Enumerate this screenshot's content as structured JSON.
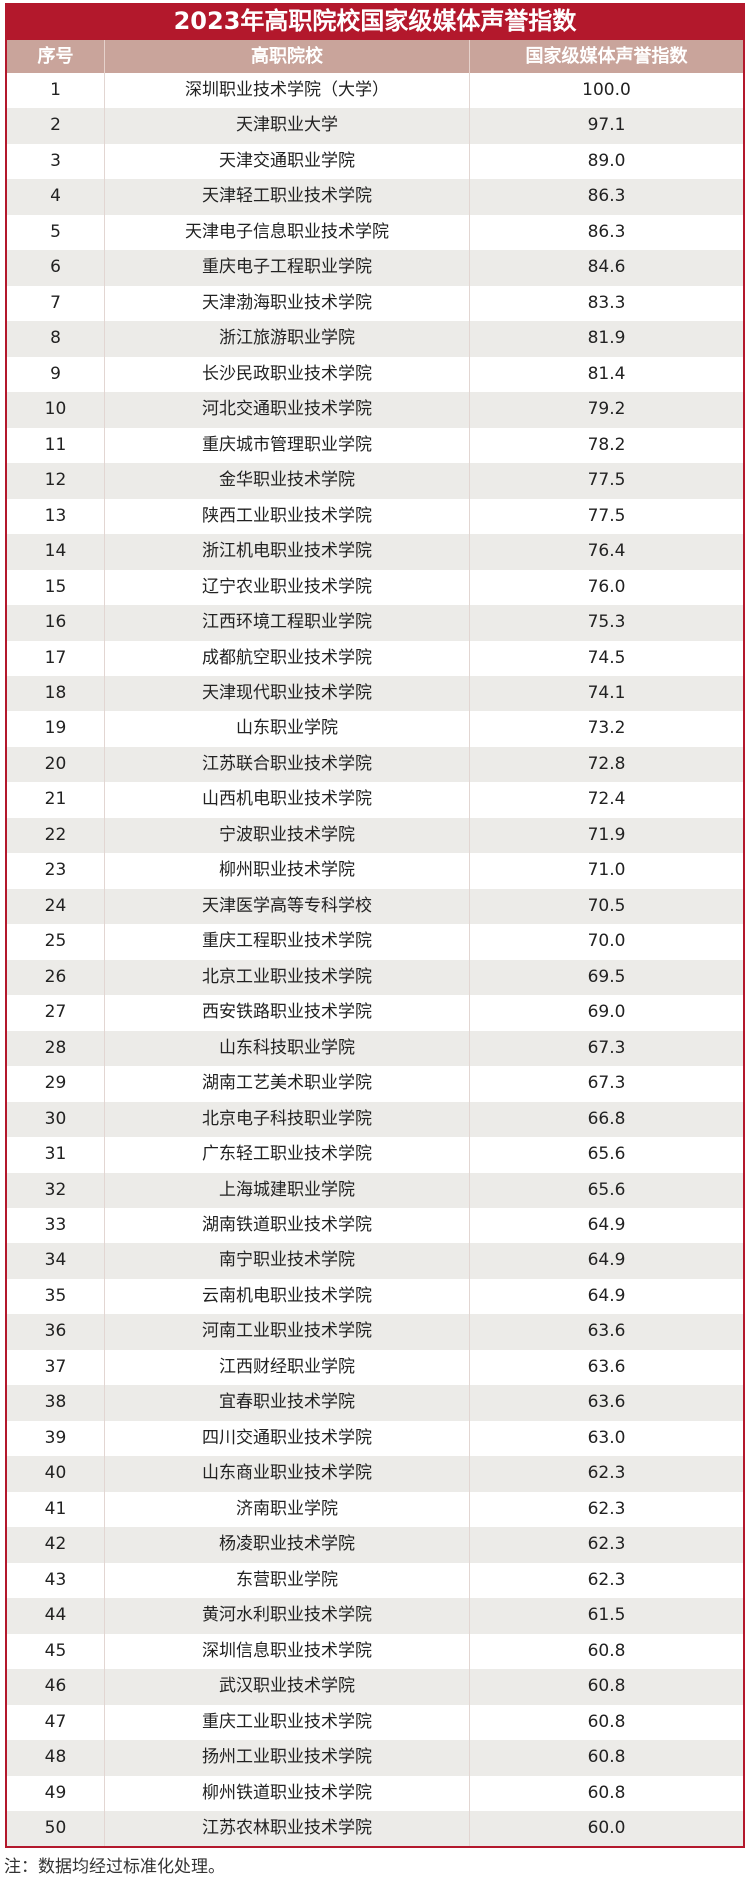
{
  "title": "2023年高职院校国家级媒体声誉指数",
  "columns": [
    "序号",
    "高职院校",
    "国家级媒体声誉指数"
  ],
  "rows": [
    [
      "1",
      "深圳职业技术学院（大学）",
      "100.0"
    ],
    [
      "2",
      "天津职业大学",
      "97.1"
    ],
    [
      "3",
      "天津交通职业学院",
      "89.0"
    ],
    [
      "4",
      "天津轻工职业技术学院",
      "86.3"
    ],
    [
      "5",
      "天津电子信息职业技术学院",
      "86.3"
    ],
    [
      "6",
      "重庆电子工程职业学院",
      "84.6"
    ],
    [
      "7",
      "天津渤海职业技术学院",
      "83.3"
    ],
    [
      "8",
      "浙江旅游职业学院",
      "81.9"
    ],
    [
      "9",
      "长沙民政职业技术学院",
      "81.4"
    ],
    [
      "10",
      "河北交通职业技术学院",
      "79.2"
    ],
    [
      "11",
      "重庆城市管理职业学院",
      "78.2"
    ],
    [
      "12",
      "金华职业技术学院",
      "77.5"
    ],
    [
      "13",
      "陕西工业职业技术学院",
      "77.5"
    ],
    [
      "14",
      "浙江机电职业技术学院",
      "76.4"
    ],
    [
      "15",
      "辽宁农业职业技术学院",
      "76.0"
    ],
    [
      "16",
      "江西环境工程职业学院",
      "75.3"
    ],
    [
      "17",
      "成都航空职业技术学院",
      "74.5"
    ],
    [
      "18",
      "天津现代职业技术学院",
      "74.1"
    ],
    [
      "19",
      "山东职业学院",
      "73.2"
    ],
    [
      "20",
      "江苏联合职业技术学院",
      "72.8"
    ],
    [
      "21",
      "山西机电职业技术学院",
      "72.4"
    ],
    [
      "22",
      "宁波职业技术学院",
      "71.9"
    ],
    [
      "23",
      "柳州职业技术学院",
      "71.0"
    ],
    [
      "24",
      "天津医学高等专科学校",
      "70.5"
    ],
    [
      "25",
      "重庆工程职业技术学院",
      "70.0"
    ],
    [
      "26",
      "北京工业职业技术学院",
      "69.5"
    ],
    [
      "27",
      "西安铁路职业技术学院",
      "69.0"
    ],
    [
      "28",
      "山东科技职业学院",
      "67.3"
    ],
    [
      "29",
      "湖南工艺美术职业学院",
      "67.3"
    ],
    [
      "30",
      "北京电子科技职业学院",
      "66.8"
    ],
    [
      "31",
      "广东轻工职业技术学院",
      "65.6"
    ],
    [
      "32",
      "上海城建职业学院",
      "65.6"
    ],
    [
      "33",
      "湖南铁道职业技术学院",
      "64.9"
    ],
    [
      "34",
      "南宁职业技术学院",
      "64.9"
    ],
    [
      "35",
      "云南机电职业技术学院",
      "64.9"
    ],
    [
      "36",
      "河南工业职业技术学院",
      "63.6"
    ],
    [
      "37",
      "江西财经职业学院",
      "63.6"
    ],
    [
      "38",
      "宜春职业技术学院",
      "63.6"
    ],
    [
      "39",
      "四川交通职业技术学院",
      "63.0"
    ],
    [
      "40",
      "山东商业职业技术学院",
      "62.3"
    ],
    [
      "41",
      "济南职业学院",
      "62.3"
    ],
    [
      "42",
      "杨凌职业技术学院",
      "62.3"
    ],
    [
      "43",
      "东营职业学院",
      "62.3"
    ],
    [
      "44",
      "黄河水利职业技术学院",
      "61.5"
    ],
    [
      "45",
      "深圳信息职业技术学院",
      "60.8"
    ],
    [
      "46",
      "武汉职业技术学院",
      "60.8"
    ],
    [
      "47",
      "重庆工业职业技术学院",
      "60.8"
    ],
    [
      "48",
      "扬州工业职业技术学院",
      "60.8"
    ],
    [
      "49",
      "柳州铁道职业技术学院",
      "60.8"
    ],
    [
      "50",
      "江苏农林职业技术学院",
      "60.0"
    ]
  ],
  "note": "注：数据均经过标准化处理。",
  "colors": {
    "title_bg": "#b3182c",
    "header_bg": "#c9a49b",
    "alt_row": "#ecebe8"
  }
}
